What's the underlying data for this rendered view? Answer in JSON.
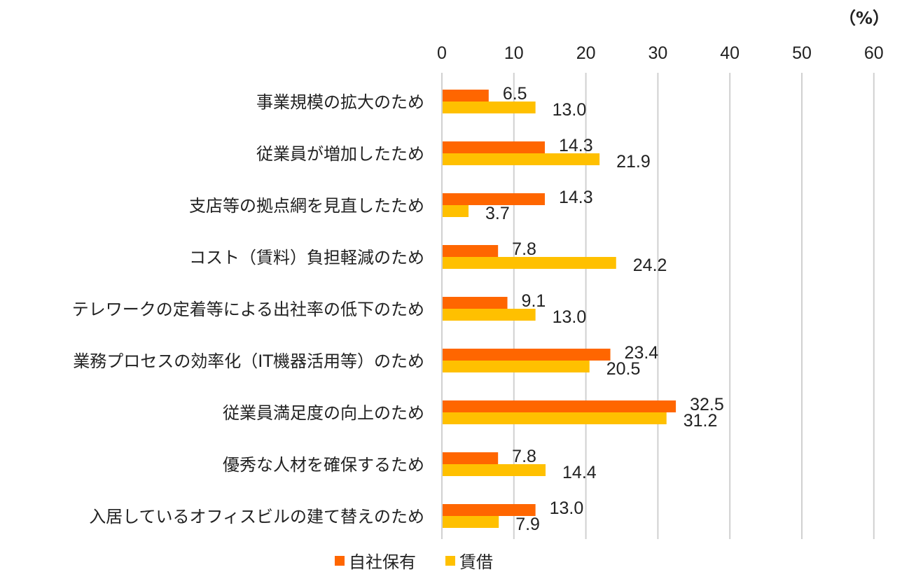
{
  "chart_data": {
    "type": "bar",
    "orientation": "horizontal",
    "unit_label": "（%）",
    "categories": [
      "事業規模の拡大のため",
      "従業員が増加したため",
      "支店等の拠点網を見直したため",
      "コスト（賃料）負担軽減のため",
      "テレワークの定着等による出社率の低下のため",
      "業務プロセスの効率化（IT機器活用等）のため",
      "従業員満足度の向上のため",
      "優秀な人材を確保するため",
      "入居しているオフィスビルの建て替えのため"
    ],
    "series": [
      {
        "name": "自社保有",
        "color": "#ff6600",
        "values": [
          6.5,
          14.3,
          14.3,
          7.8,
          9.1,
          23.4,
          32.5,
          7.8,
          13.0
        ]
      },
      {
        "name": "賃借",
        "color": "#ffc000",
        "values": [
          13.0,
          21.9,
          3.7,
          24.2,
          13.0,
          20.5,
          31.2,
          14.4,
          7.9
        ]
      }
    ],
    "xlim": [
      0,
      60
    ],
    "xticks": [
      "0",
      "10",
      "20",
      "30",
      "40",
      "50",
      "60"
    ],
    "xaxis_position": "top",
    "grid": true,
    "legend_position": "bottom"
  }
}
